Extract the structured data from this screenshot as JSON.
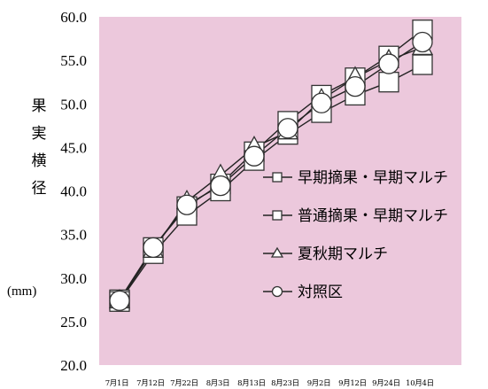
{
  "chart_data": {
    "type": "line",
    "ylabel": "果実横径",
    "unit": "(mm)",
    "ylim": [
      20.0,
      60.0
    ],
    "yticks": [
      "20.0",
      "25.0",
      "30.0",
      "35.0",
      "40.0",
      "45.0",
      "50.0",
      "55.0",
      "60.0"
    ],
    "categories": [
      "7月1日",
      "7月12日",
      "7月22日",
      "8月3日",
      "8月13日",
      "8月23日",
      "9月2日",
      "9月12日",
      "9月24日",
      "10月4日"
    ],
    "series": [
      {
        "name": "早期摘果・早期マルチ",
        "marker": "square",
        "values": [
          27.5,
          33.5,
          38.2,
          40.8,
          44.5,
          48.0,
          51.0,
          53.0,
          55.5,
          58.5
        ]
      },
      {
        "name": "普通摘果・早期マルチ",
        "marker": "square",
        "values": [
          27.3,
          32.8,
          37.2,
          40.0,
          43.5,
          46.5,
          49.0,
          51.0,
          52.5,
          54.5
        ]
      },
      {
        "name": "夏秋期マルチ",
        "marker": "triangle",
        "values": [
          27.4,
          33.2,
          38.8,
          41.8,
          45.0,
          46.8,
          50.5,
          53.0,
          55.0,
          56.5
        ]
      },
      {
        "name": "対照区",
        "marker": "circle",
        "values": [
          27.4,
          33.5,
          38.4,
          40.6,
          44.0,
          47.2,
          50.1,
          52.0,
          54.6,
          57.1
        ]
      }
    ],
    "background": "#ecc8dc",
    "legend_position": "right"
  }
}
